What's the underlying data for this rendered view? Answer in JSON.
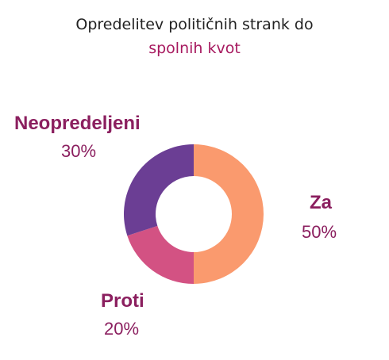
{
  "chart_data": {
    "type": "pie",
    "donut": true,
    "title": "Opredelitev političnih strank do",
    "subtitle": "spolnih kvot",
    "slices": [
      {
        "label": "Za",
        "value": 50,
        "value_label": "50%",
        "color": "#fa9a6e"
      },
      {
        "label": "Proti",
        "value": 20,
        "value_label": "20%",
        "color": "#d35283"
      },
      {
        "label": "Neopredeljeni",
        "value": 30,
        "value_label": "30%",
        "color": "#6b3e94"
      }
    ],
    "start_angle_deg": 0,
    "direction": "clockwise",
    "label_color": "#8b1f5f",
    "subtitle_color": "#a7195f"
  }
}
